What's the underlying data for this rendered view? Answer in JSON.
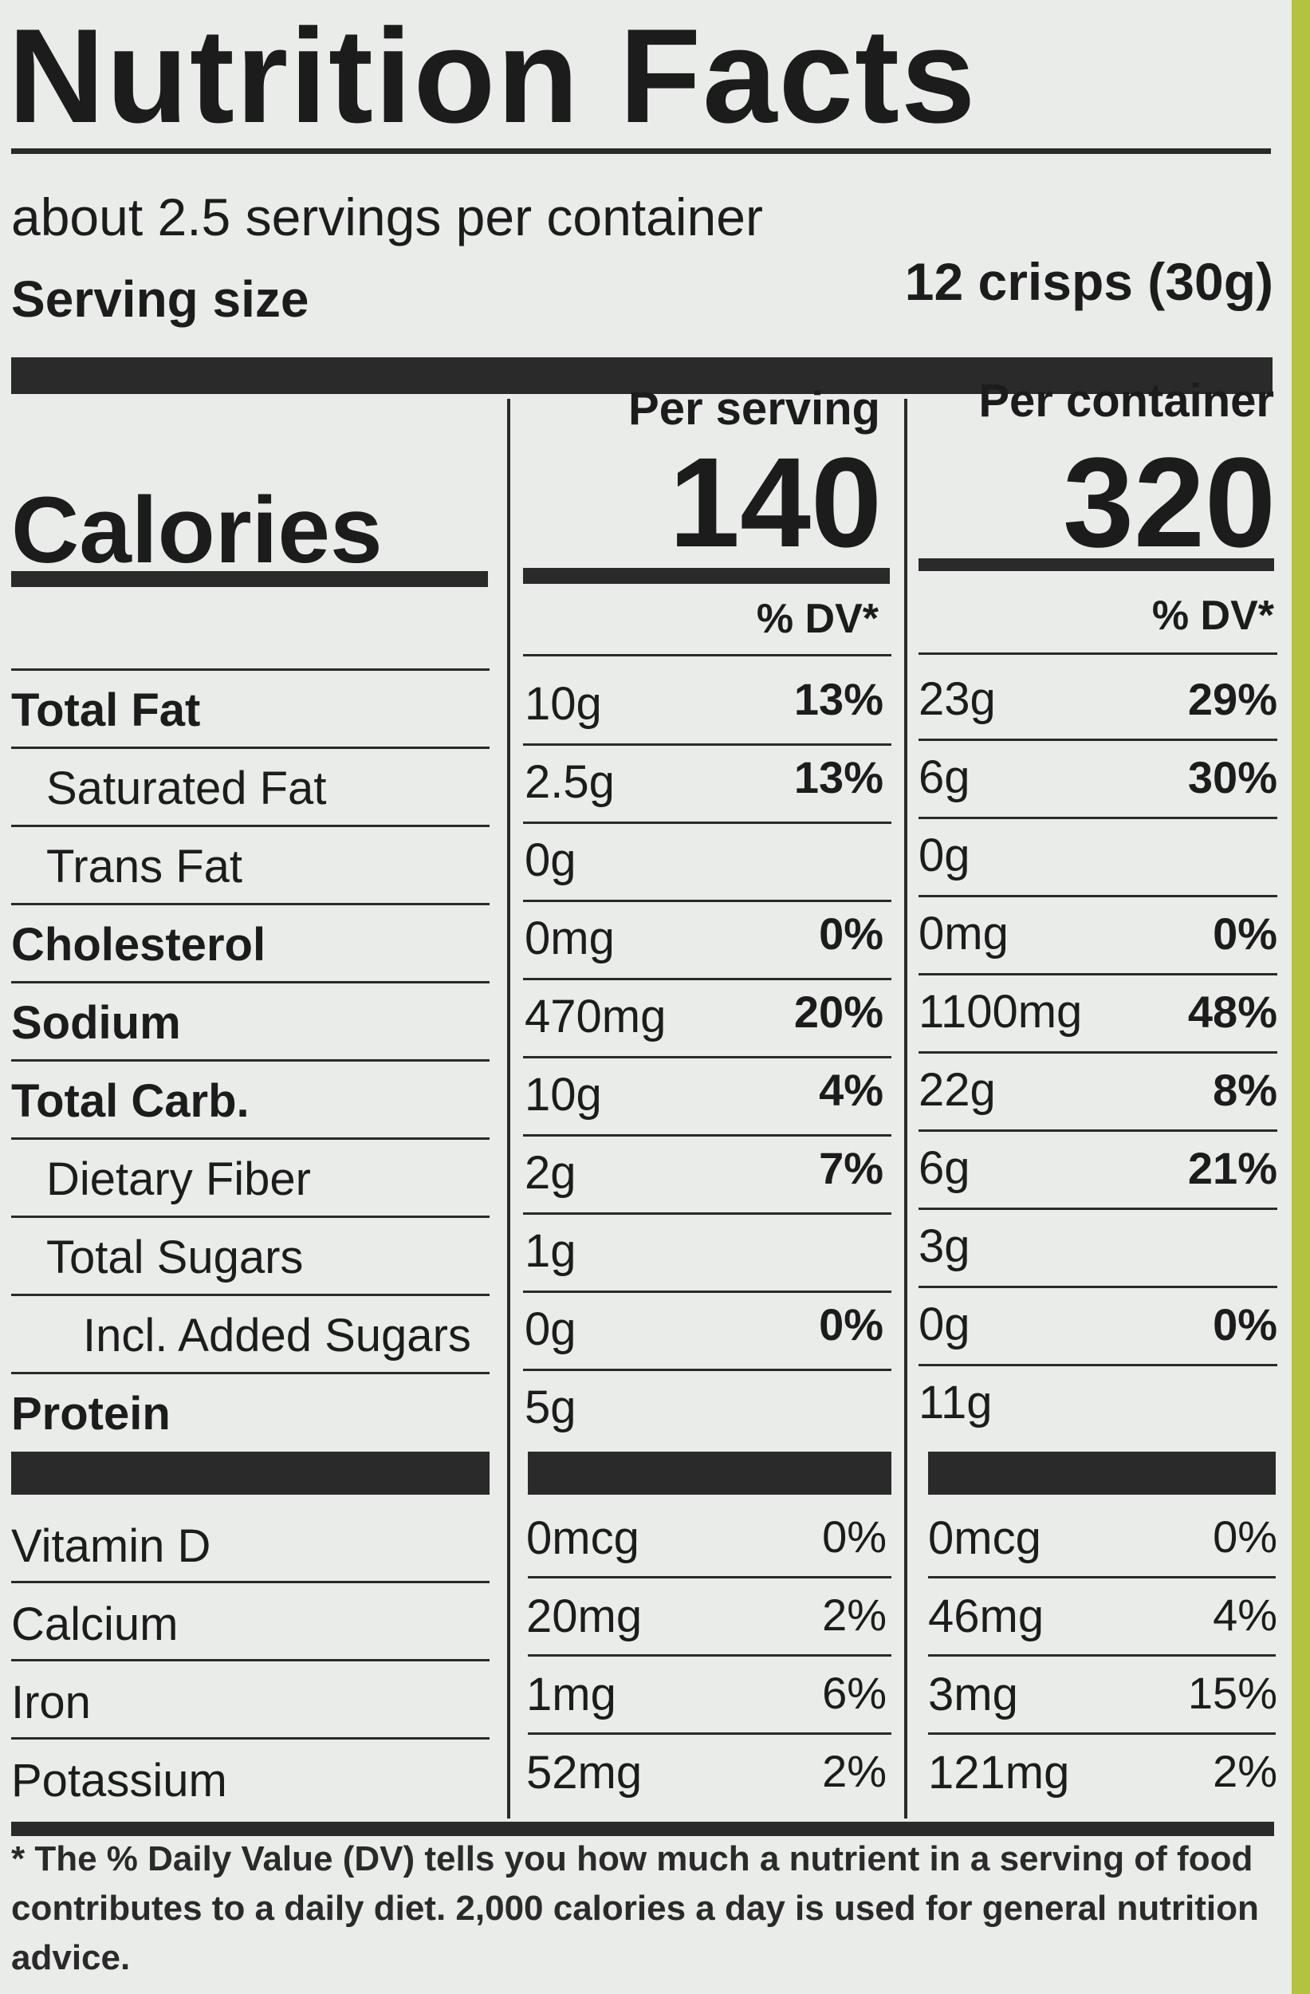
{
  "label": {
    "title": "Nutrition Facts",
    "servings_per_container": "about 2.5 servings per container",
    "serving_size_label": "Serving size",
    "serving_size_value": "12 crisps (30g)",
    "calories_label": "Calories",
    "per_serving_label": "Per serving",
    "per_container_label": "Per container",
    "calories_per_serving": "140",
    "calories_per_container": "320",
    "dv_header": "% DV*"
  },
  "rows": [
    {
      "label": "Total Fat",
      "bold": true,
      "indent": 0,
      "s_amt": "10g",
      "s_pct": "13%",
      "c_amt": "23g",
      "c_pct": "29%",
      "pct_bold": true
    },
    {
      "label": "Saturated Fat",
      "bold": false,
      "indent": 1,
      "s_amt": "2.5g",
      "s_pct": "13%",
      "c_amt": "6g",
      "c_pct": "30%",
      "pct_bold": true
    },
    {
      "label": "Trans Fat",
      "bold": false,
      "indent": 1,
      "s_amt": "0g",
      "s_pct": "",
      "c_amt": "0g",
      "c_pct": "",
      "pct_bold": true
    },
    {
      "label": "Cholesterol",
      "bold": true,
      "indent": 0,
      "s_amt": "0mg",
      "s_pct": "0%",
      "c_amt": "0mg",
      "c_pct": "0%",
      "pct_bold": true
    },
    {
      "label": "Sodium",
      "bold": true,
      "indent": 0,
      "s_amt": "470mg",
      "s_pct": "20%",
      "c_amt": "1100mg",
      "c_pct": "48%",
      "pct_bold": true
    },
    {
      "label": "Total Carb.",
      "bold": true,
      "indent": 0,
      "s_amt": "10g",
      "s_pct": "4%",
      "c_amt": "22g",
      "c_pct": "8%",
      "pct_bold": true
    },
    {
      "label": "Dietary Fiber",
      "bold": false,
      "indent": 1,
      "s_amt": "2g",
      "s_pct": "7%",
      "c_amt": "6g",
      "c_pct": "21%",
      "pct_bold": true
    },
    {
      "label": "Total Sugars",
      "bold": false,
      "indent": 1,
      "s_amt": "1g",
      "s_pct": "",
      "c_amt": "3g",
      "c_pct": "",
      "pct_bold": true
    },
    {
      "label": "Incl. Added Sugars",
      "bold": false,
      "indent": 2,
      "s_amt": "0g",
      "s_pct": "0%",
      "c_amt": "0g",
      "c_pct": "0%",
      "pct_bold": true
    },
    {
      "label": "Protein",
      "bold": true,
      "indent": 0,
      "s_amt": "5g",
      "s_pct": "",
      "c_amt": "11g",
      "c_pct": "",
      "pct_bold": true
    }
  ],
  "vitamins": [
    {
      "label": "Vitamin D",
      "s_amt": "0mcg",
      "s_pct": "0%",
      "c_amt": "0mcg",
      "c_pct": "0%"
    },
    {
      "label": "Calcium",
      "s_amt": "20mg",
      "s_pct": "2%",
      "c_amt": "46mg",
      "c_pct": "4%"
    },
    {
      "label": "Iron",
      "s_amt": "1mg",
      "s_pct": "6%",
      "c_amt": "3mg",
      "c_pct": "15%"
    },
    {
      "label": "Potassium",
      "s_amt": "52mg",
      "s_pct": "2%",
      "c_amt": "121mg",
      "c_pct": "2%"
    }
  ],
  "footnote": "* The % Daily Value (DV) tells you how much a nutrient in a serving of food contributes to a daily diet. 2,000 calories a day is used for general nutrition advice."
}
